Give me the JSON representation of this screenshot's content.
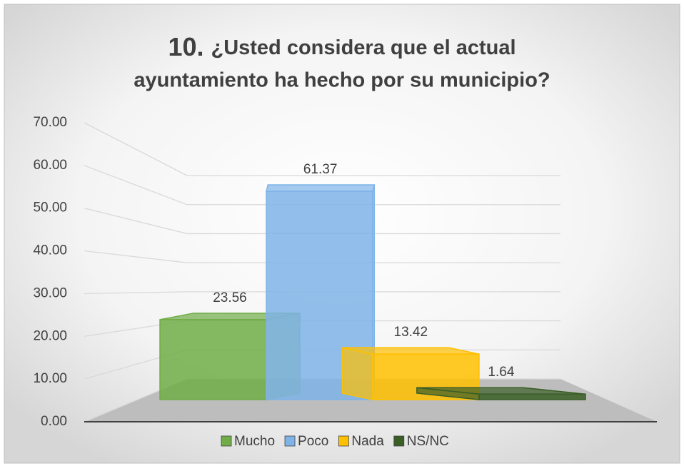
{
  "chart_data": {
    "type": "bar3d",
    "title_number": "10.",
    "title": "¿Usted considera que el actual",
    "title_line2": "ayuntamiento ha hecho por su municipio?",
    "categories": [
      "Mucho",
      "Poco",
      "Nada",
      "NS/NC"
    ],
    "values": [
      23.56,
      61.37,
      13.42,
      1.64
    ],
    "colors": [
      "#70ad47",
      "#7fb3e8",
      "#ffc000",
      "#3a5e26"
    ],
    "ylim": [
      0,
      70
    ],
    "yticks": [
      {
        "value": 0,
        "label": "0.00"
      },
      {
        "value": 10,
        "label": "10.00"
      },
      {
        "value": 20,
        "label": "20.00"
      },
      {
        "value": 30,
        "label": "30.00"
      },
      {
        "value": 40,
        "label": "40.00"
      },
      {
        "value": 50,
        "label": "50.00"
      },
      {
        "value": 60,
        "label": "60.00"
      },
      {
        "value": 70,
        "label": "70.00"
      }
    ],
    "grid": true,
    "legend": "bottom"
  }
}
